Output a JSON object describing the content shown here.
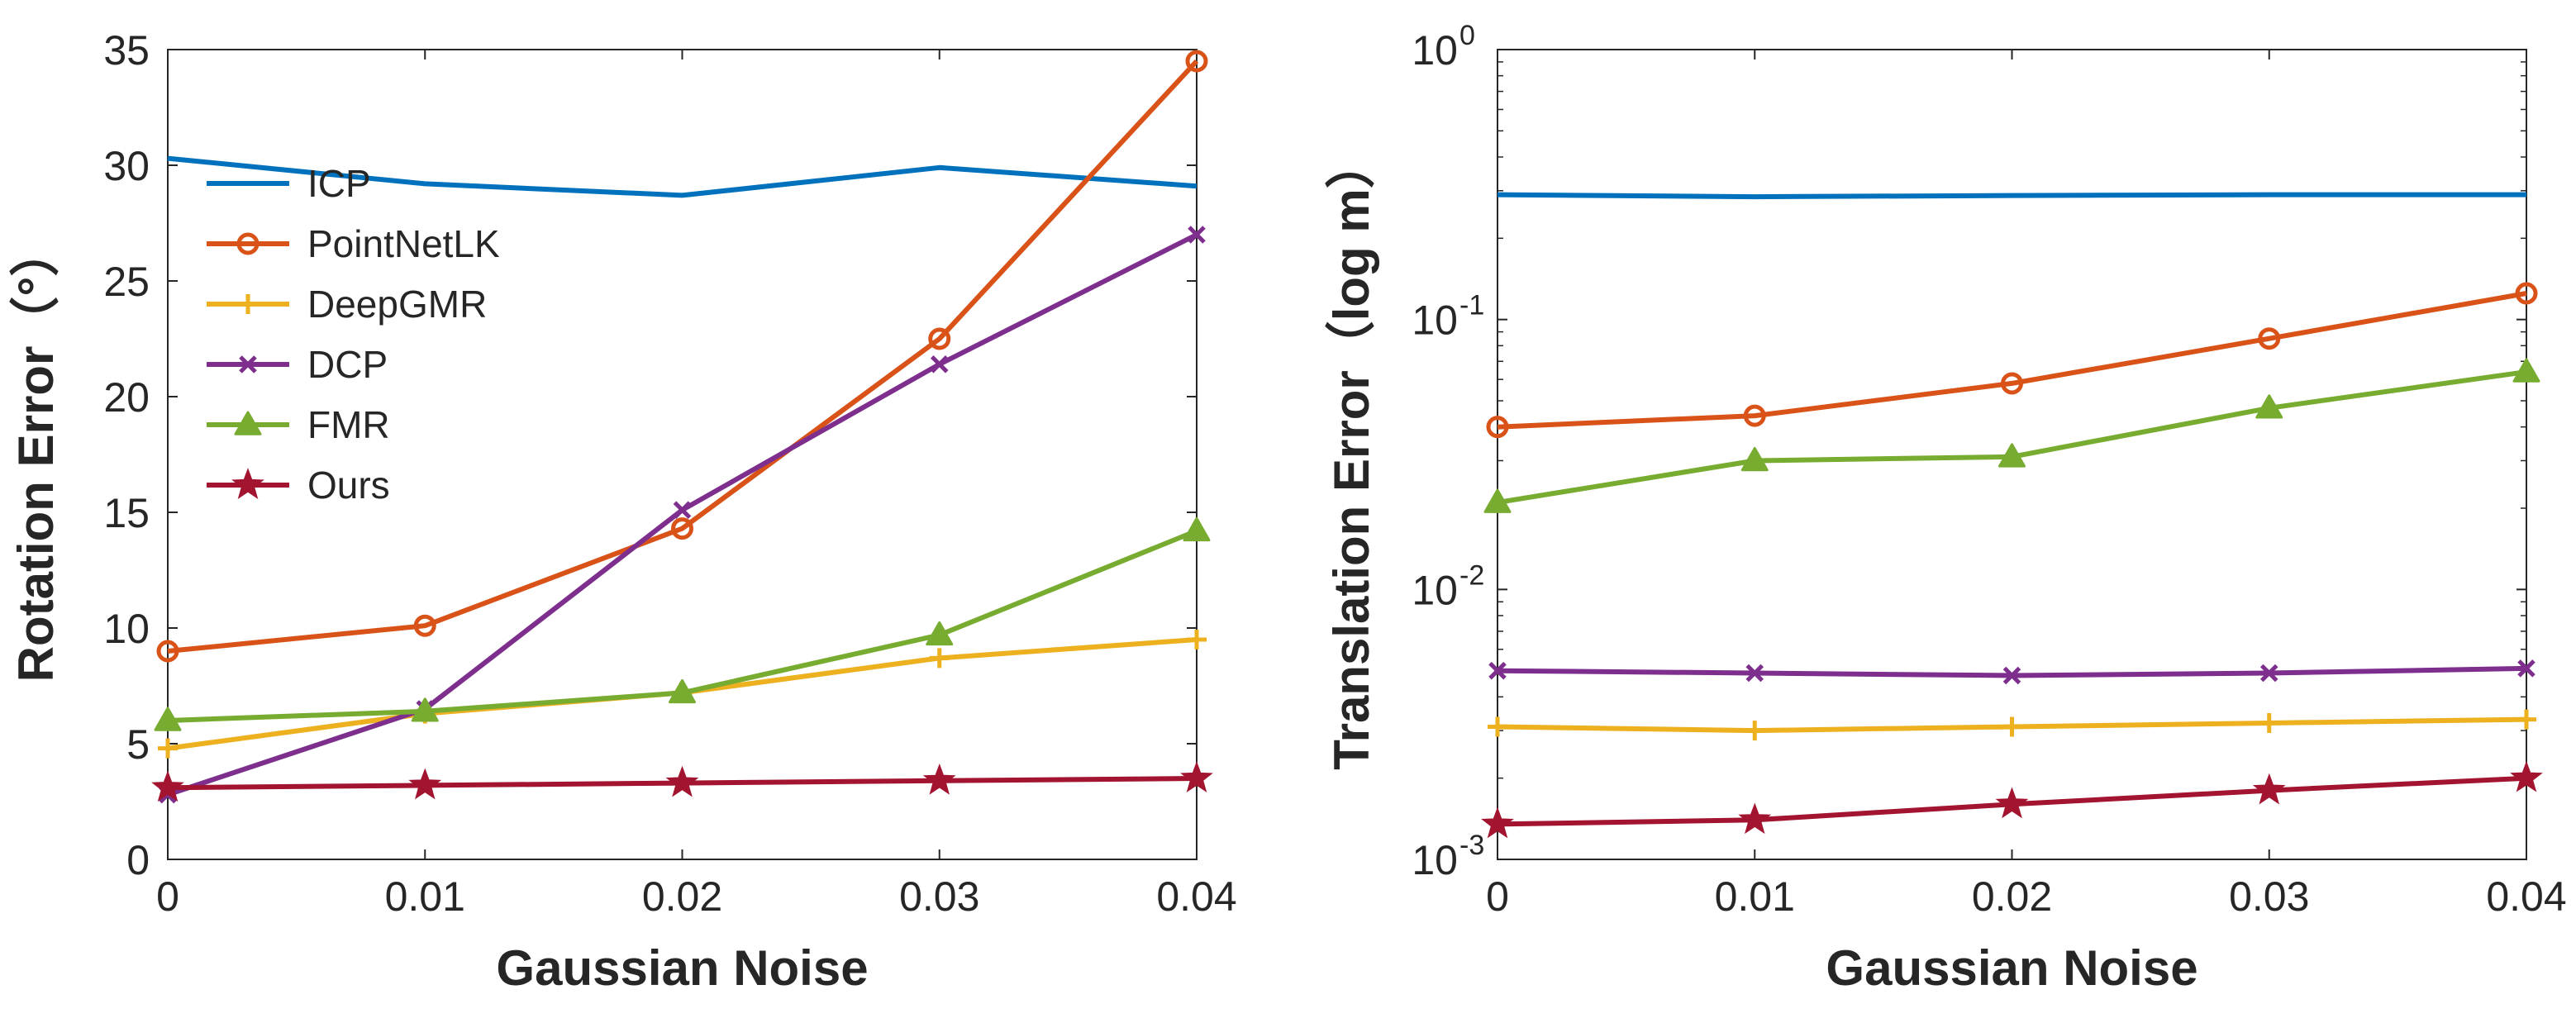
{
  "chart_data": [
    {
      "type": "line",
      "xlabel": "Gaussian Noise",
      "ylabel": "Rotation Error（°）",
      "x": [
        0,
        0.01,
        0.02,
        0.03,
        0.04
      ],
      "x_tick_labels": [
        "0",
        "0.01",
        "0.02",
        "0.03",
        "0.04"
      ],
      "xlim": [
        0,
        0.04
      ],
      "ylim": [
        0,
        35
      ],
      "y_ticks": [
        0,
        5,
        10,
        15,
        20,
        25,
        30,
        35
      ],
      "y_tick_labels": [
        "0",
        "5",
        "10",
        "15",
        "20",
        "25",
        "30",
        "35"
      ],
      "yscale": "linear",
      "grid": false,
      "legend_position": "upper-left",
      "series": [
        {
          "name": "ICP",
          "marker": "none",
          "color": "#0072BD",
          "values": [
            30.3,
            29.2,
            28.7,
            29.9,
            29.1
          ]
        },
        {
          "name": "PointNetLK",
          "marker": "circle",
          "color": "#D95319",
          "values": [
            9.0,
            10.1,
            14.3,
            22.5,
            34.5
          ]
        },
        {
          "name": "DeepGMR",
          "marker": "plus",
          "color": "#EDB120",
          "values": [
            4.8,
            6.3,
            7.2,
            8.7,
            9.5
          ]
        },
        {
          "name": "DCP",
          "marker": "x",
          "color": "#7E2F8E",
          "values": [
            2.8,
            6.5,
            15.1,
            21.4,
            27.0
          ]
        },
        {
          "name": "FMR",
          "marker": "triangle",
          "color": "#77AC30",
          "values": [
            6.0,
            6.4,
            7.2,
            9.7,
            14.2
          ]
        },
        {
          "name": "Ours",
          "marker": "star",
          "color": "#A2142F",
          "values": [
            3.1,
            3.2,
            3.3,
            3.4,
            3.5
          ]
        }
      ]
    },
    {
      "type": "line",
      "xlabel": "Gaussian Noise",
      "ylabel": "Translation Error（log m）",
      "x": [
        0,
        0.01,
        0.02,
        0.03,
        0.04
      ],
      "x_tick_labels": [
        "0",
        "0.01",
        "0.02",
        "0.03",
        "0.04"
      ],
      "xlim": [
        0,
        0.04
      ],
      "ylim": [
        0.001,
        1
      ],
      "y_ticks": [
        0.001,
        0.01,
        0.1,
        1
      ],
      "y_tick_labels": [
        {
          "base": "10",
          "exp": "-3"
        },
        {
          "base": "10",
          "exp": "-2"
        },
        {
          "base": "10",
          "exp": "-1"
        },
        {
          "base": "10",
          "exp": "0"
        }
      ],
      "yscale": "log",
      "grid": false,
      "series": [
        {
          "name": "ICP",
          "marker": "none",
          "color": "#0072BD",
          "values": [
            0.29,
            0.285,
            0.288,
            0.29,
            0.29
          ]
        },
        {
          "name": "PointNetLK",
          "marker": "circle",
          "color": "#D95319",
          "values": [
            0.04,
            0.044,
            0.058,
            0.085,
            0.125
          ]
        },
        {
          "name": "DeepGMR",
          "marker": "plus",
          "color": "#EDB120",
          "values": [
            0.0031,
            0.003,
            0.0031,
            0.0032,
            0.0033
          ]
        },
        {
          "name": "DCP",
          "marker": "x",
          "color": "#7E2F8E",
          "values": [
            0.005,
            0.0049,
            0.0048,
            0.0049,
            0.0051
          ]
        },
        {
          "name": "FMR",
          "marker": "triangle",
          "color": "#77AC30",
          "values": [
            0.021,
            0.03,
            0.031,
            0.047,
            0.064
          ]
        },
        {
          "name": "Ours",
          "marker": "star",
          "color": "#A2142F",
          "values": [
            0.00135,
            0.0014,
            0.0016,
            0.0018,
            0.002
          ]
        }
      ]
    }
  ]
}
